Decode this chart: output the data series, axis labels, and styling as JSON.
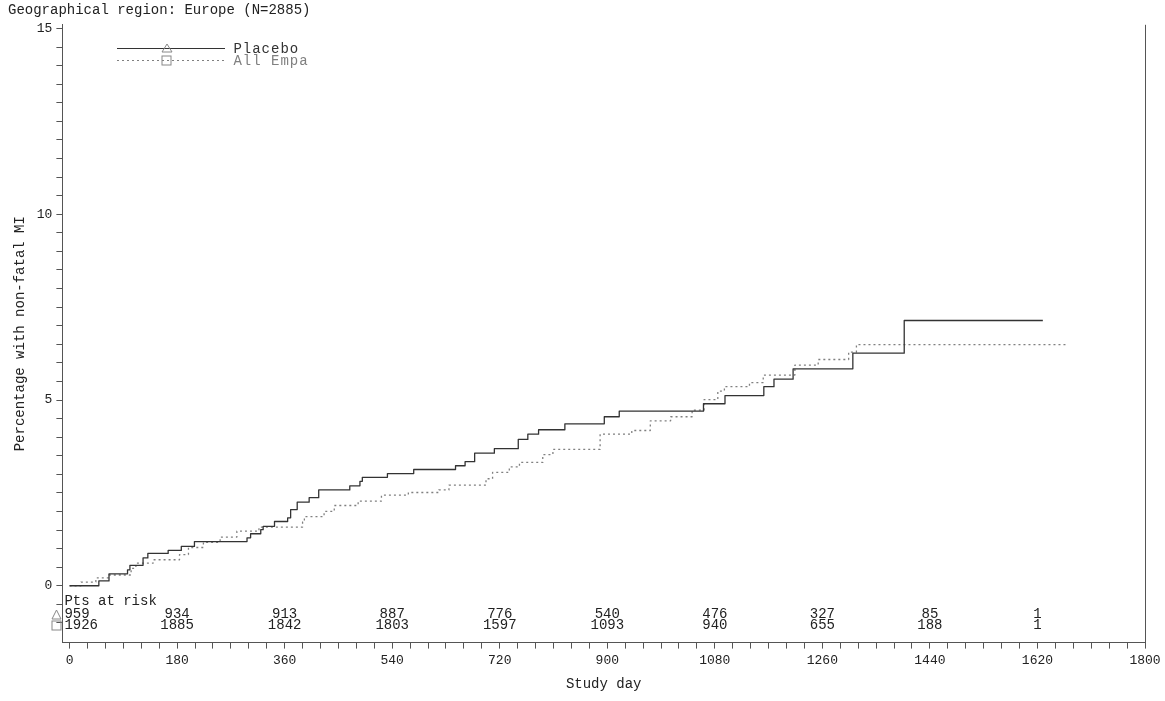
{
  "chart_data": {
    "type": "step",
    "title": "Geographical region: Europe (N=2885)",
    "xlabel": "Study day",
    "ylabel": "Percentage with non-fatal MI",
    "xlim": [
      -12,
      1800
    ],
    "ylim": [
      -1.53,
      15.1
    ],
    "xticks": [
      0,
      {
        "value": 30,
        "label": null
      },
      {
        "value": 60,
        "label": null
      },
      {
        "value": 90,
        "label": null
      },
      {
        "value": 120,
        "label": null
      },
      {
        "value": 150,
        "label": null
      },
      180,
      {
        "value": 210,
        "label": null
      },
      {
        "value": 240,
        "label": null
      },
      {
        "value": 270,
        "label": null
      },
      {
        "value": 300,
        "label": null
      },
      {
        "value": 330,
        "label": null
      },
      360,
      {
        "value": 390,
        "label": null
      },
      {
        "value": 420,
        "label": null
      },
      {
        "value": 450,
        "label": null
      },
      {
        "value": 480,
        "label": null
      },
      {
        "value": 510,
        "label": null
      },
      540,
      {
        "value": 570,
        "label": null
      },
      {
        "value": 600,
        "label": null
      },
      {
        "value": 630,
        "label": null
      },
      {
        "value": 660,
        "label": null
      },
      {
        "value": 690,
        "label": null
      },
      720,
      {
        "value": 750,
        "label": null
      },
      {
        "value": 780,
        "label": null
      },
      {
        "value": 810,
        "label": null
      },
      {
        "value": 840,
        "label": null
      },
      {
        "value": 870,
        "label": null
      },
      900,
      {
        "value": 930,
        "label": null
      },
      {
        "value": 960,
        "label": null
      },
      {
        "value": 990,
        "label": null
      },
      {
        "value": 1020,
        "label": null
      },
      {
        "value": 1050,
        "label": null
      },
      1080,
      {
        "value": 1110,
        "label": null
      },
      {
        "value": 1140,
        "label": null
      },
      {
        "value": 1170,
        "label": null
      },
      {
        "value": 1200,
        "label": null
      },
      {
        "value": 1230,
        "label": null
      },
      1260,
      {
        "value": 1290,
        "label": null
      },
      {
        "value": 1320,
        "label": null
      },
      {
        "value": 1350,
        "label": null
      },
      {
        "value": 1380,
        "label": null
      },
      {
        "value": 1410,
        "label": null
      },
      1440,
      {
        "value": 1470,
        "label": null
      },
      {
        "value": 1500,
        "label": null
      },
      {
        "value": 1530,
        "label": null
      },
      {
        "value": 1560,
        "label": null
      },
      {
        "value": 1590,
        "label": null
      },
      1620,
      {
        "value": 1650,
        "label": null
      },
      {
        "value": 1680,
        "label": null
      },
      {
        "value": 1710,
        "label": null
      },
      {
        "value": 1740,
        "label": null
      },
      {
        "value": 1770,
        "label": null
      },
      1800
    ],
    "yticks": [
      {
        "value": -1,
        "label": null
      },
      {
        "value": -0.5,
        "label": null
      },
      0,
      {
        "value": 0.5,
        "label": null
      },
      {
        "value": 1,
        "label": null
      },
      {
        "value": 1.5,
        "label": null
      },
      {
        "value": 2,
        "label": null
      },
      {
        "value": 2.5,
        "label": null
      },
      {
        "value": 3,
        "label": null
      },
      {
        "value": 3.5,
        "label": null
      },
      {
        "value": 4,
        "label": null
      },
      {
        "value": 4.5,
        "label": null
      },
      5,
      {
        "value": 5.5,
        "label": null
      },
      {
        "value": 6,
        "label": null
      },
      {
        "value": 6.5,
        "label": null
      },
      {
        "value": 7,
        "label": null
      },
      {
        "value": 7.5,
        "label": null
      },
      {
        "value": 8,
        "label": null
      },
      {
        "value": 8.5,
        "label": null
      },
      {
        "value": 9,
        "label": null
      },
      {
        "value": 9.5,
        "label": null
      },
      10,
      {
        "value": 10.5,
        "label": null
      },
      {
        "value": 11,
        "label": null
      },
      {
        "value": 11.5,
        "label": null
      },
      {
        "value": 12,
        "label": null
      },
      {
        "value": 12.5,
        "label": null
      },
      {
        "value": 13,
        "label": null
      },
      {
        "value": 13.5,
        "label": null
      },
      {
        "value": 14,
        "label": null
      },
      {
        "value": 14.5,
        "label": null
      },
      15
    ],
    "grid": false,
    "legend": "top left",
    "series": [
      {
        "name": "Placebo",
        "color": "#333333",
        "line_style": "solid",
        "x": [
          0,
          49,
          66,
          97,
          101,
          123,
          131,
          165,
          187,
          209,
          297,
          303,
          320,
          324,
          343,
          365,
          370,
          381,
          401,
          417,
          469,
          486,
          490,
          532,
          576,
          646,
          662,
          678,
          711,
          751,
          767,
          785,
          829,
          895,
          920,
          1061,
          1097,
          1162,
          1179,
          1211,
          1311,
          1397,
          1629
        ],
        "values": [
          0,
          0.13,
          0.32,
          0.43,
          0.55,
          0.75,
          0.87,
          0.95,
          1.06,
          1.19,
          1.29,
          1.4,
          1.51,
          1.6,
          1.73,
          1.83,
          2.05,
          2.25,
          2.37,
          2.58,
          2.69,
          2.81,
          2.92,
          3.02,
          3.13,
          3.23,
          3.34,
          3.57,
          3.69,
          3.94,
          4.08,
          4.2,
          4.36,
          4.55,
          4.7,
          4.9,
          5.12,
          5.36,
          5.56,
          5.84,
          6.26,
          7.14,
          7.14
        ]
      },
      {
        "name": "All Empa",
        "color": "#808080",
        "line_style": "dotted",
        "x": [
          0,
          19,
          44,
          66,
          103,
          111,
          140,
          184,
          199,
          224,
          252,
          280,
          317,
          390,
          393,
          426,
          443,
          483,
          522,
          567,
          618,
          635,
          697,
          708,
          736,
          753,
          792,
          809,
          888,
          941,
          972,
          1006,
          1042,
          1062,
          1085,
          1096,
          1138,
          1161,
          1214,
          1253,
          1304,
          1317,
          1669
        ],
        "values": [
          0,
          0.1,
          0.21,
          0.29,
          0.47,
          0.61,
          0.7,
          0.84,
          1.03,
          1.17,
          1.31,
          1.47,
          1.58,
          1.72,
          1.86,
          2,
          2.16,
          2.28,
          2.44,
          2.51,
          2.58,
          2.71,
          2.88,
          3.05,
          3.2,
          3.32,
          3.53,
          3.67,
          4.08,
          4.18,
          4.44,
          4.55,
          4.73,
          5.01,
          5.24,
          5.36,
          5.47,
          5.67,
          5.94,
          6.09,
          6.29,
          6.49,
          6.49
        ]
      }
    ],
    "annotations": [
      "Pts at risk",
      "959",
      "934",
      "913",
      "887",
      "776",
      "540",
      "476",
      "327",
      "85",
      "1",
      "1926",
      "1885",
      "1842",
      "1803",
      "1597",
      "1093",
      "940",
      "655",
      "188",
      "1"
    ]
  }
}
